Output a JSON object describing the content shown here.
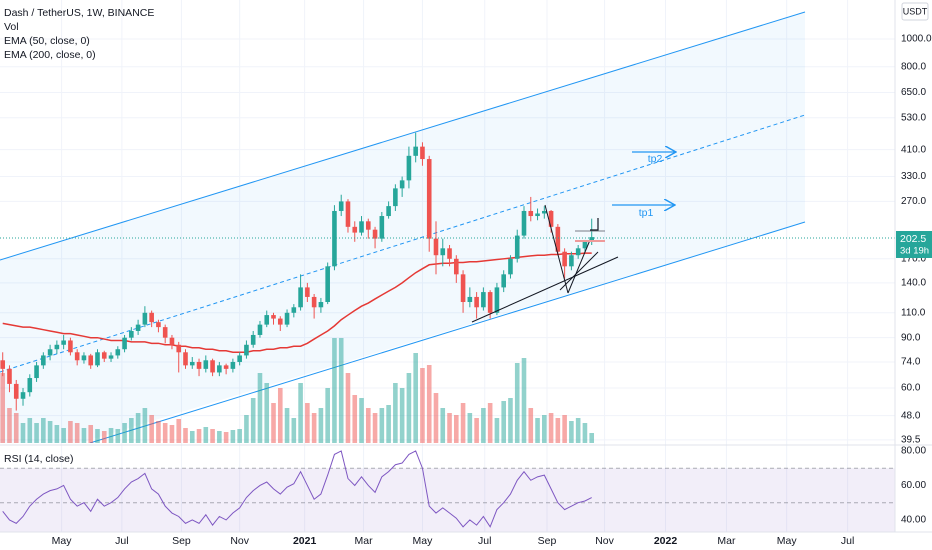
{
  "chart_data": {
    "type": "candlestick",
    "title": "Dash / TetherUS, 1W, BINANCE",
    "legend": [
      "Vol",
      "EMA (50, close, 0)",
      "EMA (200, close, 0)"
    ],
    "rsi_title": "RSI (14, close)",
    "currency": "USDT",
    "countdown": "3d 19h",
    "annotations": [
      "tp2",
      "tp1"
    ],
    "log_scale": true,
    "grid": true,
    "up_color": "#26a69a",
    "down_color": "#ef5350",
    "ema_color": "#e53935",
    "rsi_color": "#7e57c2",
    "candles": [
      [
        75,
        80,
        66,
        70
      ],
      [
        70,
        72,
        58,
        62
      ],
      [
        62,
        64,
        50,
        55
      ],
      [
        55,
        60,
        52,
        58
      ],
      [
        58,
        67,
        56,
        65
      ],
      [
        65,
        74,
        63,
        72
      ],
      [
        72,
        80,
        70,
        78
      ],
      [
        78,
        85,
        75,
        82
      ],
      [
        82,
        88,
        79,
        85
      ],
      [
        85,
        92,
        82,
        88
      ],
      [
        88,
        90,
        78,
        80
      ],
      [
        80,
        82,
        72,
        75
      ],
      [
        75,
        80,
        73,
        78
      ],
      [
        78,
        79,
        70,
        72
      ],
      [
        72,
        82,
        71,
        80
      ],
      [
        80,
        81,
        74,
        76
      ],
      [
        76,
        80,
        74,
        78
      ],
      [
        78,
        84,
        76,
        82
      ],
      [
        82,
        92,
        80,
        90
      ],
      [
        90,
        98,
        88,
        95
      ],
      [
        95,
        104,
        92,
        100
      ],
      [
        100,
        116,
        98,
        110
      ],
      [
        110,
        112,
        98,
        102
      ],
      [
        102,
        104,
        94,
        98
      ],
      [
        98,
        100,
        86,
        90
      ],
      [
        90,
        92,
        82,
        85
      ],
      [
        85,
        87,
        68,
        80
      ],
      [
        80,
        82,
        70,
        72
      ],
      [
        72,
        77,
        70,
        74
      ],
      [
        74,
        76,
        66,
        70
      ],
      [
        70,
        78,
        68,
        75
      ],
      [
        75,
        76,
        66,
        68
      ],
      [
        68,
        74,
        66,
        72
      ],
      [
        72,
        73,
        67,
        70
      ],
      [
        70,
        76,
        68,
        74
      ],
      [
        74,
        80,
        72,
        78
      ],
      [
        78,
        88,
        76,
        85
      ],
      [
        85,
        95,
        83,
        92
      ],
      [
        92,
        103,
        90,
        100
      ],
      [
        100,
        112,
        98,
        108
      ],
      [
        108,
        110,
        100,
        105
      ],
      [
        105,
        107,
        95,
        100
      ],
      [
        100,
        113,
        98,
        110
      ],
      [
        110,
        118,
        106,
        115
      ],
      [
        115,
        150,
        112,
        135
      ],
      [
        135,
        140,
        120,
        125
      ],
      [
        125,
        128,
        105,
        115
      ],
      [
        115,
        124,
        110,
        120
      ],
      [
        120,
        165,
        118,
        160
      ],
      [
        160,
        262,
        155,
        250
      ],
      [
        250,
        285,
        240,
        270
      ],
      [
        270,
        275,
        210,
        220
      ],
      [
        220,
        230,
        195,
        210
      ],
      [
        210,
        240,
        205,
        230
      ],
      [
        230,
        235,
        200,
        215
      ],
      [
        215,
        220,
        185,
        200
      ],
      [
        200,
        248,
        195,
        240
      ],
      [
        240,
        270,
        235,
        260
      ],
      [
        260,
        310,
        250,
        300
      ],
      [
        300,
        330,
        280,
        320
      ],
      [
        320,
        420,
        300,
        390
      ],
      [
        390,
        470,
        370,
        420
      ],
      [
        420,
        435,
        360,
        380
      ],
      [
        380,
        390,
        180,
        200
      ],
      [
        200,
        230,
        150,
        175
      ],
      [
        175,
        200,
        160,
        185
      ],
      [
        185,
        190,
        160,
        170
      ],
      [
        170,
        175,
        140,
        150
      ],
      [
        150,
        155,
        110,
        120
      ],
      [
        120,
        135,
        115,
        125
      ],
      [
        125,
        130,
        105,
        115
      ],
      [
        115,
        135,
        112,
        130
      ],
      [
        130,
        132,
        105,
        110
      ],
      [
        110,
        140,
        108,
        135
      ],
      [
        135,
        155,
        130,
        150
      ],
      [
        150,
        175,
        145,
        170
      ],
      [
        170,
        215,
        165,
        205
      ],
      [
        205,
        260,
        200,
        250
      ],
      [
        250,
        280,
        230,
        240
      ],
      [
        240,
        255,
        232,
        245
      ],
      [
        245,
        260,
        235,
        250
      ],
      [
        250,
        252,
        210,
        220
      ],
      [
        220,
        225,
        175,
        180
      ],
      [
        180,
        185,
        145,
        160
      ],
      [
        160,
        180,
        155,
        175
      ],
      [
        175,
        190,
        170,
        185
      ],
      [
        185,
        198,
        180,
        195
      ],
      [
        195,
        235,
        190,
        202.5
      ]
    ],
    "volume": [
      70,
      35,
      30,
      20,
      25,
      20,
      25,
      22,
      18,
      15,
      22,
      20,
      15,
      18,
      14,
      12,
      15,
      14,
      20,
      25,
      30,
      35,
      28,
      22,
      20,
      18,
      24,
      15,
      12,
      14,
      16,
      14,
      12,
      11,
      13,
      14,
      28,
      45,
      70,
      60,
      40,
      55,
      35,
      25,
      60,
      40,
      30,
      35,
      55,
      105,
      105,
      70,
      48,
      45,
      35,
      30,
      35,
      38,
      60,
      55,
      70,
      90,
      75,
      78,
      50,
      35,
      30,
      28,
      40,
      30,
      25,
      35,
      40,
      25,
      42,
      45,
      80,
      85,
      35,
      25,
      28,
      30,
      25,
      28,
      22,
      25,
      20,
      10
    ],
    "ema50": [
      101,
      100,
      99,
      98,
      98,
      97,
      96,
      95,
      94,
      93,
      93,
      92,
      91,
      90,
      90,
      89,
      88,
      88,
      88,
      87,
      87,
      87,
      86,
      86,
      85,
      85,
      84,
      84,
      83,
      83,
      82,
      82,
      81,
      81,
      80,
      80,
      80,
      81,
      81,
      82,
      82,
      83,
      83,
      84,
      84,
      86,
      89,
      92,
      95,
      99,
      104,
      108,
      112,
      116,
      119,
      123,
      127,
      131,
      135,
      140,
      146,
      152,
      157,
      162,
      163,
      164,
      164,
      165,
      165,
      166,
      166,
      167,
      168,
      169,
      170,
      171,
      172,
      173,
      174,
      175,
      175,
      176,
      176,
      177,
      177,
      177,
      178,
      178
    ],
    "rsi": [
      45,
      40,
      38,
      42,
      48,
      52,
      55,
      57,
      58,
      60,
      52,
      48,
      50,
      45,
      52,
      48,
      50,
      53,
      58,
      62,
      64,
      67,
      58,
      55,
      48,
      44,
      42,
      38,
      40,
      38,
      43,
      37,
      42,
      40,
      44,
      47,
      53,
      57,
      60,
      62,
      58,
      55,
      59,
      61,
      68,
      60,
      52,
      55,
      66,
      78,
      80,
      64,
      60,
      65,
      60,
      56,
      65,
      68,
      72,
      73,
      78,
      80,
      70,
      48,
      44,
      47,
      44,
      41,
      36,
      40,
      37,
      42,
      36,
      46,
      50,
      55,
      63,
      68,
      63,
      65,
      66,
      58,
      50,
      46,
      48,
      50,
      51,
      53
    ],
    "ylim": [
      38.5,
      1370
    ],
    "yticks": [
      39.5,
      {
        "value": 48,
        "label": "48.0"
      },
      {
        "value": 60,
        "label": "60.0"
      },
      {
        "value": 74,
        "label": "74.0"
      },
      {
        "value": 90,
        "label": "90.0"
      },
      {
        "value": 110,
        "label": "110.0"
      },
      {
        "value": 140,
        "label": "140.0"
      },
      {
        "value": 170,
        "label": "170.0"
      },
      {
        "value": 270,
        "label": "270.0"
      },
      {
        "value": 330,
        "label": "330.0"
      },
      {
        "value": 410,
        "label": "410.0"
      },
      {
        "value": 530,
        "label": "530.0"
      },
      {
        "value": 650,
        "label": "650.0"
      },
      {
        "value": 800,
        "label": "800.0"
      },
      {
        "value": 1000,
        "label": "1000.0"
      }
    ],
    "xlim": [
      -0.4,
      131.8
    ],
    "xticks": [
      {
        "value": 8.7,
        "label": "May"
      },
      {
        "value": 17.6,
        "label": "Jul"
      },
      {
        "value": 26.4,
        "label": "Sep"
      },
      {
        "value": 35,
        "label": "Nov"
      },
      {
        "value": 44.6,
        "label": "2021"
      },
      {
        "value": 53.3,
        "label": "Mar"
      },
      {
        "value": 62,
        "label": "May"
      },
      {
        "value": 71.2,
        "label": "Jul"
      },
      {
        "value": 80.4,
        "label": "Sep"
      },
      {
        "value": 88.9,
        "label": "Nov"
      },
      {
        "value": 97.9,
        "label": "2022"
      },
      {
        "value": 106.9,
        "label": "Mar"
      },
      {
        "value": 115.8,
        "label": "May"
      },
      {
        "value": 124.8,
        "label": "Jul"
      }
    ],
    "rsi_ylim": [
      33,
      82.3
    ],
    "rsi_yticks": [
      {
        "value": 40,
        "label": "40.00"
      },
      {
        "value": 60,
        "label": "60.00"
      },
      {
        "value": 80,
        "label": "80.00"
      }
    ],
    "rsi_levels": [
      70,
      50
    ]
  }
}
